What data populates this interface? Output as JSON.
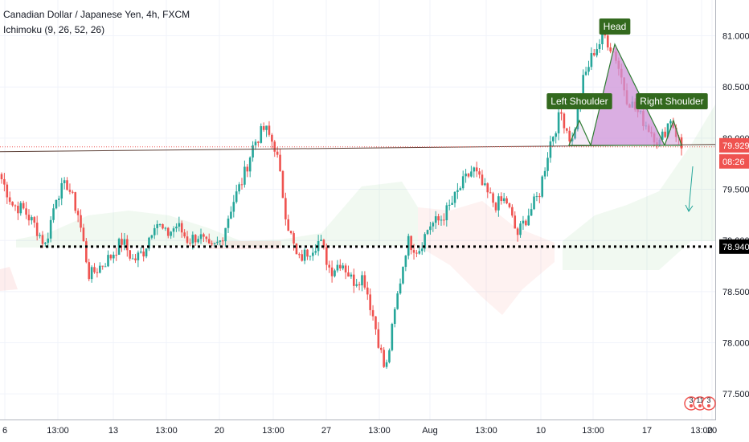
{
  "header": {
    "title": "Canadian Dollar / Japanese Yen, 4h, FXCM",
    "indicator": "Ichimoku (9, 26, 52, 26)"
  },
  "chart_data": {
    "type": "candlestick",
    "ylim": [
      77.25,
      81.35
    ],
    "y_ticks": [
      "81.000",
      "80.500",
      "80.000",
      "79.500",
      "79.000",
      "78.500",
      "78.000",
      "77.500"
    ],
    "x_ticks": [
      "6",
      "13:00",
      "13",
      "13:00",
      "20",
      "13:00",
      "27",
      "13:00",
      "Aug",
      "13:00",
      "10",
      "13:00",
      "17",
      "13:00",
      "20"
    ],
    "last_price": "79.929",
    "countdown": "08:26",
    "level_label": "78.940",
    "level_value": 78.94,
    "neckline_value": 79.93,
    "patterns": {
      "left_shoulder": "Left Shoulder",
      "head": "Head",
      "right_shoulder": "Right Shoulder"
    },
    "badge_counts": [
      "3",
      "11",
      "3"
    ],
    "up_color": "#26a69a",
    "down_color": "#ef5350",
    "close_path": [
      79.6,
      79.35,
      79.3,
      79.15,
      78.95,
      79.45,
      79.55,
      79.25,
      78.65,
      78.75,
      78.85,
      79.0,
      78.8,
      78.9,
      79.2,
      79.05,
      79.15,
      79.0,
      79.05,
      78.9,
      79.0,
      79.35,
      79.6,
      79.95,
      80.1,
      79.9,
      79.2,
      78.8,
      78.9,
      79.0,
      78.7,
      78.8,
      78.6,
      78.65,
      78.2,
      77.7,
      78.4,
      79.0,
      78.9,
      79.15,
      79.2,
      79.35,
      79.55,
      79.7,
      79.5,
      79.35,
      79.4,
      79.05,
      79.25,
      79.45,
      79.95,
      80.25,
      79.95,
      80.55,
      80.85,
      81.0,
      80.8,
      80.4,
      80.25,
      80.1,
      79.95,
      80.2,
      79.9
    ]
  }
}
